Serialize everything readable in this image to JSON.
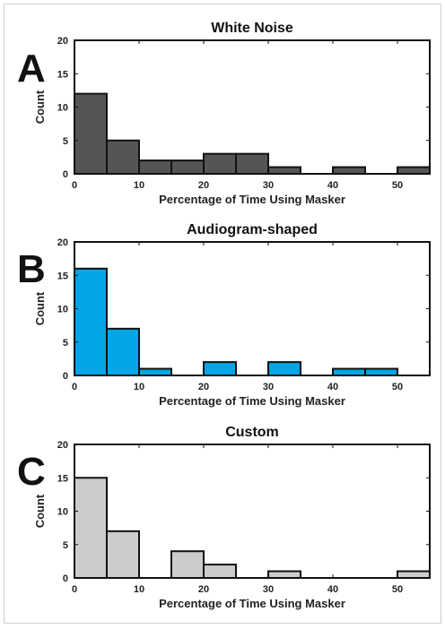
{
  "chart_data": [
    {
      "type": "bar",
      "panel_letter": "A",
      "title": "White Noise",
      "xlabel": "Percentage of Time Using Masker",
      "ylabel": "Count",
      "bin_edges": [
        0,
        5,
        10,
        15,
        20,
        25,
        30,
        35,
        40,
        45,
        50,
        55
      ],
      "values": [
        12,
        5,
        2,
        2,
        3,
        3,
        1,
        0,
        1,
        0,
        1
      ],
      "xlim": [
        0,
        55
      ],
      "ylim": [
        0,
        20
      ],
      "xticks": [
        0,
        10,
        20,
        30,
        40,
        50
      ],
      "yticks": [
        0,
        5,
        10,
        15,
        20
      ],
      "color": "#555555",
      "grid": false
    },
    {
      "type": "bar",
      "panel_letter": "B",
      "title": "Audiogram-shaped",
      "xlabel": "Percentage of Time Using Masker",
      "ylabel": "Count",
      "bin_edges": [
        0,
        5,
        10,
        15,
        20,
        25,
        30,
        35,
        40,
        45,
        50
      ],
      "values": [
        16,
        7,
        1,
        0,
        2,
        0,
        2,
        0,
        1,
        1
      ],
      "xlim": [
        0,
        55
      ],
      "ylim": [
        0,
        20
      ],
      "xticks": [
        0,
        10,
        20,
        30,
        40,
        50
      ],
      "yticks": [
        0,
        5,
        10,
        15,
        20
      ],
      "color": "#00a6e6",
      "grid": false
    },
    {
      "type": "bar",
      "panel_letter": "C",
      "title": "Custom",
      "xlabel": "Percentage of Time Using Masker",
      "ylabel": "Count",
      "bin_edges": [
        0,
        5,
        10,
        15,
        20,
        25,
        30,
        35,
        40,
        45,
        50,
        55
      ],
      "values": [
        15,
        7,
        0,
        4,
        2,
        0,
        1,
        0,
        0,
        0,
        1
      ],
      "xlim": [
        0,
        55
      ],
      "ylim": [
        0,
        20
      ],
      "xticks": [
        0,
        10,
        20,
        30,
        40,
        50
      ],
      "yticks": [
        0,
        5,
        10,
        15,
        20
      ],
      "color": "#cccccc",
      "grid": false
    }
  ]
}
